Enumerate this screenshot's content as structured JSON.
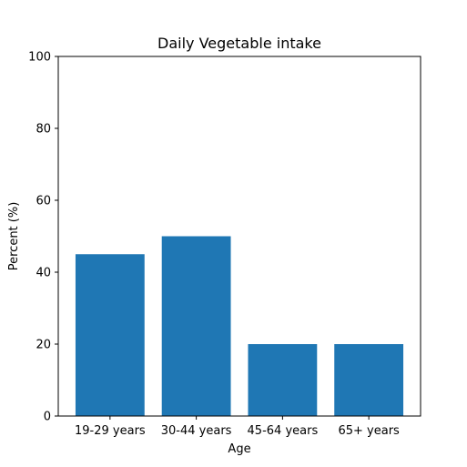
{
  "chart_data": {
    "type": "bar",
    "title": "Daily Vegetable intake",
    "xlabel": "Age",
    "ylabel": "Percent (%)",
    "categories": [
      "19-29 years",
      "30-44 years",
      "45-64 years",
      "65+ years"
    ],
    "values": [
      45,
      50,
      20,
      20
    ],
    "ylim": [
      0,
      100
    ],
    "yticks": [
      0,
      20,
      40,
      60,
      80,
      100
    ],
    "bar_color": "#1f77b4",
    "grid": false,
    "legend": "none"
  }
}
